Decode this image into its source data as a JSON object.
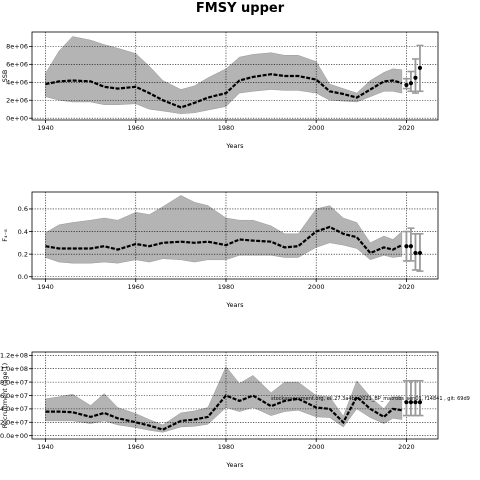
{
  "title": "FMSY upper",
  "annotation": "stockassessment.org, ell.27.3a4bc.2021_BP_matrobs_sen01, f14841 , git: 69d9",
  "chart_data": [
    {
      "type": "line",
      "name": "ssb",
      "ylabel": "SSB",
      "xlabel": "Years",
      "xlim": [
        1937,
        2027
      ],
      "ylim": [
        -200000.0,
        9600000.0
      ],
      "xticks": [
        1940,
        1960,
        1980,
        2000,
        2020
      ],
      "xtick_labels": [
        "1940",
        "1960",
        "1980",
        "2000",
        "2020"
      ],
      "yticks": [
        0,
        2000000,
        4000000,
        6000000,
        8000000
      ],
      "ytick_labels": [
        "0e+00",
        "2e+06",
        "4e+06",
        "6e+06",
        "8e+06"
      ],
      "grid": true,
      "x": [
        1940,
        1943,
        1946,
        1950,
        1953,
        1956,
        1960,
        1963,
        1966,
        1970,
        1973,
        1976,
        1980,
        1983,
        1986,
        1990,
        1993,
        1996,
        2000,
        2003,
        2006,
        2009,
        2012,
        2015,
        2017,
        2019
      ],
      "y": [
        3800000,
        4100000,
        4200000,
        4100000,
        3500000,
        3300000,
        3500000,
        2800000,
        2000000,
        1200000,
        1700000,
        2300000,
        2800000,
        4200000,
        4600000,
        4900000,
        4700000,
        4700000,
        4300000,
        3000000,
        2700000,
        2300000,
        3200000,
        4100000,
        4200000,
        3900000
      ],
      "lower": [
        2400000,
        2000000,
        1800000,
        1800000,
        1500000,
        1500000,
        1600000,
        1000000,
        800000,
        500000,
        600000,
        900000,
        1300000,
        2800000,
        3000000,
        3200000,
        3100000,
        3100000,
        2800000,
        2000000,
        1900000,
        1800000,
        2400000,
        3000000,
        3000000,
        2800000
      ],
      "upper": [
        5000000,
        7500000,
        9100000,
        8700000,
        8200000,
        7800000,
        7200000,
        5800000,
        4200000,
        3200000,
        3600000,
        4500000,
        5500000,
        6800000,
        7100000,
        7300000,
        7000000,
        7000000,
        6300000,
        3800000,
        3300000,
        2800000,
        4200000,
        5100000,
        5500000,
        5400000
      ],
      "forecast": {
        "x": [
          2020,
          2021,
          2022,
          2023
        ],
        "y": [
          3700000,
          3900000,
          4500000,
          5600000
        ],
        "lower": [
          3300000,
          3000000,
          2800000,
          3000000
        ],
        "upper": [
          4400000,
          5200000,
          6600000,
          8100000
        ]
      }
    },
    {
      "type": "line",
      "name": "fbar",
      "ylabel": "F₄₋₈",
      "xlabel": "Years",
      "xlim": [
        1937,
        2027
      ],
      "ylim": [
        -0.02,
        0.75
      ],
      "xticks": [
        1940,
        1960,
        1980,
        2000,
        2020
      ],
      "xtick_labels": [
        "1940",
        "1960",
        "1980",
        "2000",
        "2020"
      ],
      "yticks": [
        0,
        0.2,
        0.4,
        0.6
      ],
      "ytick_labels": [
        "0.0",
        "0.2",
        "0.4",
        "0.6"
      ],
      "grid": true,
      "x": [
        1940,
        1943,
        1946,
        1950,
        1953,
        1956,
        1960,
        1963,
        1966,
        1970,
        1973,
        1976,
        1980,
        1983,
        1986,
        1990,
        1993,
        1996,
        2000,
        2003,
        2006,
        2009,
        2012,
        2015,
        2017,
        2019
      ],
      "y": [
        0.27,
        0.25,
        0.25,
        0.25,
        0.27,
        0.24,
        0.29,
        0.27,
        0.3,
        0.31,
        0.3,
        0.31,
        0.28,
        0.33,
        0.32,
        0.31,
        0.26,
        0.27,
        0.4,
        0.44,
        0.38,
        0.35,
        0.21,
        0.26,
        0.24,
        0.28
      ],
      "lower": [
        0.17,
        0.13,
        0.12,
        0.12,
        0.13,
        0.12,
        0.15,
        0.13,
        0.16,
        0.15,
        0.13,
        0.15,
        0.15,
        0.19,
        0.19,
        0.19,
        0.17,
        0.17,
        0.26,
        0.3,
        0.28,
        0.25,
        0.15,
        0.19,
        0.17,
        0.18
      ],
      "upper": [
        0.39,
        0.46,
        0.48,
        0.5,
        0.52,
        0.5,
        0.57,
        0.55,
        0.62,
        0.72,
        0.66,
        0.63,
        0.52,
        0.5,
        0.5,
        0.45,
        0.38,
        0.38,
        0.6,
        0.63,
        0.52,
        0.48,
        0.3,
        0.36,
        0.33,
        0.4
      ],
      "forecast": {
        "x": [
          2020,
          2021,
          2022,
          2023
        ],
        "y": [
          0.27,
          0.27,
          0.21,
          0.21
        ],
        "lower": [
          0.14,
          0.14,
          0.06,
          0.05
        ],
        "upper": [
          0.4,
          0.43,
          0.38,
          0.38
        ]
      }
    },
    {
      "type": "line",
      "name": "recruitment",
      "ylabel": "Recruitment (age 1)",
      "xlabel": "Years",
      "xlim": [
        1937,
        2027
      ],
      "ylim": [
        -5000000.0,
        125000000.0
      ],
      "xticks": [
        1940,
        1960,
        1980,
        2000,
        2020
      ],
      "xtick_labels": [
        "1940",
        "1960",
        "1980",
        "2000",
        "2020"
      ],
      "yticks": [
        0,
        20000000,
        40000000,
        60000000,
        80000000,
        100000000,
        120000000
      ],
      "ytick_labels": [
        "0.0e+00",
        "2.0e+07",
        "4.0e+07",
        "6.0e+07",
        "8.0e+07",
        "1.0e+08",
        "1.2e+08"
      ],
      "grid": true,
      "x": [
        1940,
        1943,
        1946,
        1950,
        1953,
        1956,
        1960,
        1963,
        1966,
        1970,
        1973,
        1976,
        1980,
        1983,
        1986,
        1990,
        1993,
        1996,
        2000,
        2003,
        2006,
        2009,
        2012,
        2015,
        2017,
        2019
      ],
      "y": [
        36000000,
        36000000,
        35000000,
        28000000,
        34000000,
        26000000,
        20000000,
        15000000,
        9000000,
        22000000,
        24000000,
        28000000,
        60000000,
        52000000,
        60000000,
        44000000,
        52000000,
        55000000,
        42000000,
        40000000,
        20000000,
        58000000,
        40000000,
        28000000,
        40000000,
        38000000
      ],
      "lower": [
        22000000,
        22000000,
        22000000,
        18000000,
        22000000,
        16000000,
        12000000,
        8000000,
        5000000,
        13000000,
        14000000,
        17000000,
        42000000,
        36000000,
        42000000,
        30000000,
        36000000,
        38000000,
        28000000,
        27000000,
        13000000,
        40000000,
        27000000,
        18000000,
        26000000,
        24000000
      ],
      "upper": [
        55000000,
        58000000,
        62000000,
        45000000,
        63000000,
        42000000,
        33000000,
        24000000,
        16000000,
        34000000,
        37000000,
        42000000,
        103000000,
        78000000,
        90000000,
        64000000,
        80000000,
        80000000,
        60000000,
        58000000,
        29000000,
        82000000,
        58000000,
        40000000,
        58000000,
        58000000
      ],
      "forecast": {
        "x": [
          2020,
          2021,
          2022,
          2023
        ],
        "y": [
          50000000,
          50000000,
          50000000,
          50000000
        ],
        "lower": [
          30000000,
          30000000,
          30000000,
          30000000
        ],
        "upper": [
          82000000,
          82000000,
          82000000,
          82000000
        ]
      }
    }
  ]
}
